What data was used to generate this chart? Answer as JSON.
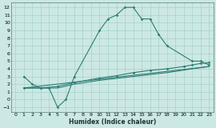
{
  "xlabel": "Humidex (Indice chaleur)",
  "bg_color": "#cce8e4",
  "grid_color": "#9dccc4",
  "line_color": "#2d7d72",
  "xlim": [
    -0.5,
    23.5
  ],
  "ylim": [
    -1.6,
    12.6
  ],
  "xticks": [
    0,
    1,
    2,
    3,
    4,
    5,
    6,
    7,
    8,
    9,
    10,
    11,
    12,
    13,
    14,
    15,
    16,
    17,
    18,
    19,
    20,
    21,
    22,
    23
  ],
  "yticks": [
    -1,
    0,
    1,
    2,
    3,
    4,
    5,
    6,
    7,
    8,
    9,
    10,
    11,
    12
  ],
  "curve1_x": [
    1,
    2,
    3,
    4,
    5,
    6,
    7,
    10,
    11,
    12,
    13,
    14,
    15,
    16,
    17,
    18,
    21,
    22,
    23
  ],
  "curve1_y": [
    3.0,
    2.0,
    1.5,
    1.5,
    -1.0,
    0.0,
    3.0,
    9.0,
    10.5,
    11.0,
    12.0,
    12.0,
    10.5,
    10.5,
    8.5,
    7.0,
    5.0,
    5.0,
    4.5
  ],
  "curve2_x": [
    1,
    3,
    5,
    7,
    10,
    12,
    14,
    16,
    18,
    20,
    21,
    22,
    23
  ],
  "curve2_y": [
    1.5,
    1.5,
    1.7,
    2.2,
    2.8,
    3.1,
    3.5,
    3.8,
    4.0,
    4.3,
    4.5,
    4.7,
    4.8
  ],
  "curve3_x": [
    1,
    5,
    7,
    10,
    14,
    18,
    21,
    23
  ],
  "curve3_y": [
    1.5,
    1.5,
    2.0,
    2.5,
    3.0,
    3.5,
    4.0,
    4.3
  ],
  "line4_x": [
    1,
    23
  ],
  "line4_y": [
    1.5,
    4.3
  ]
}
